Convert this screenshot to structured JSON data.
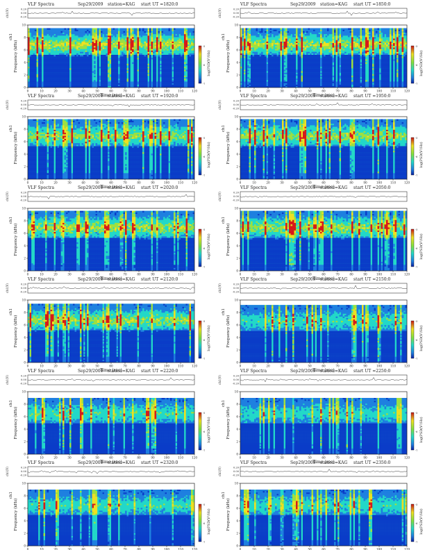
{
  "page": {
    "panel_title": "VLF Spectra",
    "channel_label": "ch1",
    "wave_ylabel": "ch1(V)",
    "wave_ticks": [
      "0.20",
      "0.00",
      "-0.20"
    ],
    "freq_ylabel": "Frequency  (kHz)",
    "xlabel": "Time  (sec)",
    "colorbar_label": "log(PSD(V²/Hz)",
    "colorbar_ticks": [
      "-5",
      "-6",
      "-7"
    ],
    "colors": {
      "background": "#0a3cc8",
      "low": "#1e7fe0",
      "mid": "#22d8c8",
      "band": "#9ee040",
      "high": "#f0e020",
      "peak": "#d81818"
    }
  },
  "chart_data": [
    {
      "type": "heatmap",
      "date": "Sep29/2009",
      "station": "station=KAG",
      "start_ut": "start  UT  =1820:0",
      "x": [
        0,
        10,
        20,
        30,
        40,
        50,
        60,
        70,
        80,
        90,
        100,
        110,
        120
      ],
      "y": [
        0,
        2,
        4,
        6,
        8,
        10
      ],
      "xlim": [
        0,
        120
      ],
      "ylim": [
        0,
        10
      ],
      "band_top": 9.5,
      "intensity": 0.95
    },
    {
      "type": "heatmap",
      "date": "Sep29/2009",
      "station": "station=KAG",
      "start_ut": "start  UT  =1850:0",
      "x": [
        0,
        10,
        20,
        30,
        40,
        50,
        60,
        70,
        80,
        90,
        100,
        110,
        120
      ],
      "y": [
        0,
        2,
        4,
        6,
        8,
        10
      ],
      "xlim": [
        0,
        120
      ],
      "ylim": [
        0,
        10
      ],
      "band_top": 9.5,
      "intensity": 0.9
    },
    {
      "type": "heatmap",
      "date": "Sep29/2009",
      "station": "station=KAG",
      "start_ut": "start  UT  =1920:0",
      "x": [
        0,
        10,
        20,
        30,
        40,
        50,
        60,
        70,
        80,
        90,
        100,
        110,
        120
      ],
      "y": [
        0,
        2,
        4,
        6,
        8,
        10
      ],
      "xlim": [
        0,
        120
      ],
      "ylim": [
        0,
        10
      ],
      "band_top": 9.6,
      "intensity": 0.8
    },
    {
      "type": "heatmap",
      "date": "Sep29/2009",
      "station": "station=KAG",
      "start_ut": "start  UT  =1950:0",
      "x": [
        0,
        10,
        20,
        30,
        40,
        50,
        60,
        70,
        80,
        90,
        100,
        110,
        120
      ],
      "y": [
        0,
        2,
        4,
        6,
        8,
        10
      ],
      "xlim": [
        0,
        120
      ],
      "ylim": [
        0,
        10
      ],
      "band_top": 9.6,
      "intensity": 0.8
    },
    {
      "type": "heatmap",
      "date": "Sep29/2009",
      "station": "station=KAG",
      "start_ut": "start  UT  =2020:0",
      "x": [
        0,
        10,
        20,
        30,
        40,
        50,
        60,
        70,
        80,
        90,
        100,
        110,
        120
      ],
      "y": [
        0,
        2,
        4,
        6,
        8,
        10
      ],
      "xlim": [
        0,
        120
      ],
      "ylim": [
        0,
        10
      ],
      "band_top": 9.6,
      "intensity": 0.85
    },
    {
      "type": "heatmap",
      "date": "Sep29/2009",
      "station": "station=KAG",
      "start_ut": "start  UT  =2050:0",
      "x": [
        0,
        10,
        20,
        30,
        40,
        50,
        60,
        70,
        80,
        90,
        100,
        110,
        120
      ],
      "y": [
        0,
        2,
        4,
        6,
        8,
        10
      ],
      "xlim": [
        0,
        120
      ],
      "ylim": [
        0,
        10
      ],
      "band_top": 9.6,
      "intensity": 0.85
    },
    {
      "type": "heatmap",
      "date": "Sep29/2009",
      "station": "station=KAG",
      "start_ut": "start  UT  =2120:0",
      "x": [
        0,
        10,
        20,
        30,
        40,
        50,
        60,
        70,
        80,
        90,
        100,
        110,
        120
      ],
      "y": [
        0,
        2,
        4,
        6,
        8,
        10
      ],
      "xlim": [
        0,
        120
      ],
      "ylim": [
        0,
        10
      ],
      "band_top": 9.4,
      "intensity": 0.85
    },
    {
      "type": "heatmap",
      "date": "Sep29/2009",
      "station": "station=KAG",
      "start_ut": "start  UT  =2150:0",
      "x": [
        0,
        10,
        20,
        30,
        40,
        50,
        60,
        70,
        80,
        90,
        100,
        110,
        120
      ],
      "y": [
        0,
        2,
        4,
        6,
        8,
        10
      ],
      "xlim": [
        0,
        120
      ],
      "ylim": [
        0,
        10
      ],
      "band_top": 9.2,
      "intensity": 0.55
    },
    {
      "type": "heatmap",
      "date": "Sep29/2009",
      "station": "station=KAG",
      "start_ut": "start  UT  =2220:0",
      "x": [
        0,
        10,
        20,
        30,
        40,
        50,
        60,
        70,
        80,
        90,
        100,
        110,
        120
      ],
      "y": [
        0,
        2,
        4,
        6,
        8,
        10
      ],
      "xlim": [
        0,
        120
      ],
      "ylim": [
        0,
        10
      ],
      "band_top": 9.0,
      "intensity": 0.6
    },
    {
      "type": "heatmap",
      "date": "Sep29/2009",
      "station": "station=KAG",
      "start_ut": "start  UT  =2250:0",
      "x": [
        0,
        10,
        20,
        30,
        40,
        50,
        60,
        70,
        80,
        90,
        100,
        110,
        120
      ],
      "y": [
        0,
        2,
        4,
        6,
        8,
        10
      ],
      "xlim": [
        0,
        120
      ],
      "ylim": [
        0,
        10
      ],
      "band_top": 9.0,
      "intensity": 0.5
    },
    {
      "type": "heatmap",
      "date": "Sep29/2009",
      "station": "station=KAG",
      "start_ut": "start  UT  =2320:0",
      "x": [
        0,
        10,
        20,
        30,
        40,
        50,
        60,
        70,
        80,
        90,
        100,
        110,
        120
      ],
      "y": [
        0,
        2,
        4,
        6,
        8,
        10
      ],
      "xlim": [
        0,
        120
      ],
      "ylim": [
        0,
        10
      ],
      "band_top": 9.0,
      "intensity": 0.55
    },
    {
      "type": "heatmap",
      "date": "Sep29/2009",
      "station": "station=KAG",
      "start_ut": "start  UT  =2350:0",
      "x": [
        0,
        10,
        20,
        30,
        40,
        50,
        60,
        70,
        80,
        90,
        100,
        110,
        120
      ],
      "y": [
        0,
        2,
        4,
        6,
        8,
        10
      ],
      "xlim": [
        0,
        120
      ],
      "ylim": [
        0,
        10
      ],
      "band_top": 9.0,
      "intensity": 0.55
    }
  ]
}
